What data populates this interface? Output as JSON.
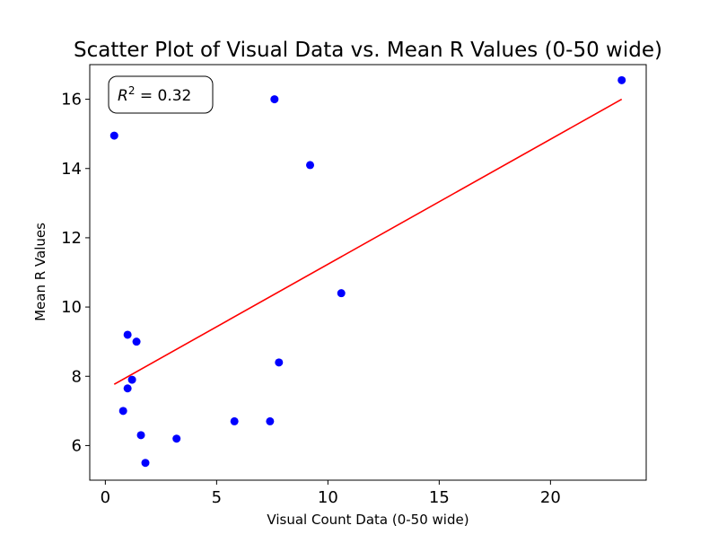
{
  "chart_data": {
    "type": "scatter",
    "title": "Scatter Plot of Visual Data vs. Mean R Values (0-50 wide)",
    "xlabel": "Visual Count Data (0-50 wide)",
    "ylabel": "Mean R Values",
    "xlim": [
      -0.7,
      24.3
    ],
    "ylim": [
      5.0,
      17.0
    ],
    "xticks": [
      0,
      5,
      10,
      15,
      20
    ],
    "yticks": [
      6,
      8,
      10,
      12,
      14,
      16
    ],
    "grid": false,
    "point_color": "#0000ff",
    "points": [
      {
        "x": 0.4,
        "y": 14.95
      },
      {
        "x": 0.8,
        "y": 7.0
      },
      {
        "x": 1.0,
        "y": 9.2
      },
      {
        "x": 1.0,
        "y": 7.65
      },
      {
        "x": 1.2,
        "y": 7.9
      },
      {
        "x": 1.4,
        "y": 9.0
      },
      {
        "x": 1.6,
        "y": 6.3
      },
      {
        "x": 1.8,
        "y": 5.5
      },
      {
        "x": 3.2,
        "y": 6.2
      },
      {
        "x": 5.8,
        "y": 6.7
      },
      {
        "x": 7.4,
        "y": 6.7
      },
      {
        "x": 7.6,
        "y": 16.0
      },
      {
        "x": 7.8,
        "y": 8.4
      },
      {
        "x": 9.2,
        "y": 14.1
      },
      {
        "x": 10.6,
        "y": 10.4
      },
      {
        "x": 23.2,
        "y": 16.55
      }
    ],
    "fit_line": {
      "color": "#ff0000",
      "x": [
        0.4,
        23.2
      ],
      "y": [
        7.77,
        16.0
      ]
    },
    "annotation": {
      "label_base": "R",
      "label_superscript": "2",
      "label_value": " = 0.32",
      "placement": "top-left"
    }
  }
}
